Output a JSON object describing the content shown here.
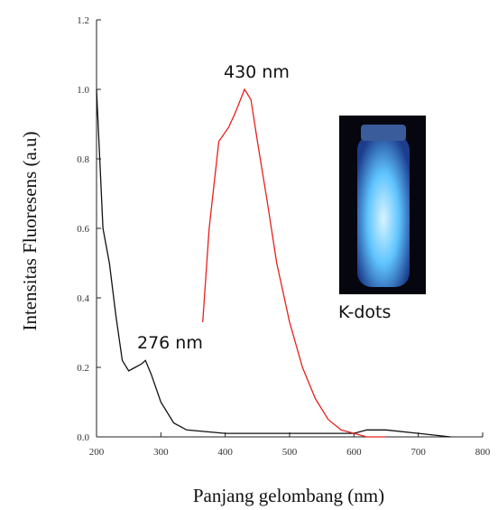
{
  "chart_data": {
    "type": "line",
    "xlabel": "Panjang gelombang (nm)",
    "ylabel": "Intensitas Fluoresens  (a.u)",
    "xlim": [
      200,
      800
    ],
    "xticks": [
      200,
      300,
      400,
      500,
      600,
      700,
      800
    ],
    "ylim": [
      0,
      1.2
    ],
    "yticks": [
      {
        "value": 0,
        "label": "0.0"
      },
      {
        "value": 0.2,
        "label": "0.2"
      },
      {
        "value": 0.4,
        "label": "0.4"
      },
      {
        "value": 0.6,
        "label": "0.6"
      },
      {
        "value": 0.8,
        "label": "0.8"
      },
      {
        "value": 1,
        "label": "1.0"
      },
      {
        "value": 1.2,
        "label": "1.2"
      }
    ],
    "series": [
      {
        "color": "#111111",
        "x": [
          200,
          205,
          210,
          220,
          230,
          240,
          250,
          260,
          270,
          276,
          285,
          300,
          320,
          340,
          400,
          500,
          600,
          620,
          650,
          700,
          750
        ],
        "values": [
          1.0,
          0.8,
          0.6,
          0.5,
          0.35,
          0.22,
          0.19,
          0.2,
          0.21,
          0.22,
          0.18,
          0.1,
          0.04,
          0.02,
          0.01,
          0.01,
          0.01,
          0.02,
          0.02,
          0.01,
          0.0
        ]
      },
      {
        "color": "#e8201c",
        "x": [
          365,
          375,
          390,
          405,
          415,
          430,
          440,
          450,
          465,
          480,
          500,
          520,
          540,
          560,
          580,
          600,
          620,
          650
        ],
        "values": [
          0.33,
          0.6,
          0.85,
          0.89,
          0.93,
          1.0,
          0.97,
          0.85,
          0.68,
          0.5,
          0.33,
          0.2,
          0.11,
          0.05,
          0.02,
          0.01,
          0.0,
          0.0
        ]
      }
    ],
    "annotations": [
      "430 nm",
      "276 nm",
      "K-dots"
    ]
  }
}
